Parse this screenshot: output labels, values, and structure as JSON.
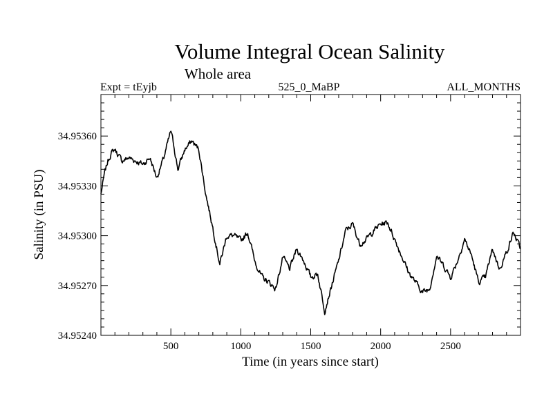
{
  "chart_data": {
    "type": "line",
    "title": "Volume Integral Ocean Salinity",
    "subtitle": "Whole area",
    "annotations": {
      "left": "Expt = tEyjb",
      "center": "525_0_MaBP",
      "right": "ALL_MONTHS"
    },
    "xlabel": "Time (in years since start)",
    "ylabel": "Salinity (in PSU)",
    "xlim": [
      0,
      3000
    ],
    "ylim": [
      34.9524,
      34.95385
    ],
    "xticks": [
      500,
      1000,
      1500,
      2000,
      2500
    ],
    "xtick_labels": [
      "500",
      "1000",
      "1500",
      "2000",
      "2500"
    ],
    "yticks": [
      34.9524,
      34.9527,
      34.953,
      34.9533,
      34.9536
    ],
    "ytick_labels": [
      "34.95240",
      "34.95270",
      "34.95300",
      "34.95330",
      "34.95360"
    ],
    "grid": false,
    "series": [
      {
        "name": "Salinity",
        "color": "#000000",
        "x": [
          0,
          25,
          50,
          75,
          100,
          150,
          200,
          250,
          300,
          350,
          400,
          450,
          500,
          520,
          550,
          600,
          650,
          700,
          750,
          800,
          850,
          900,
          950,
          1000,
          1050,
          1100,
          1150,
          1200,
          1250,
          1300,
          1350,
          1400,
          1450,
          1500,
          1550,
          1600,
          1650,
          1700,
          1750,
          1800,
          1850,
          1900,
          1950,
          2000,
          2050,
          2100,
          2150,
          2200,
          2250,
          2300,
          2350,
          2400,
          2450,
          2500,
          2550,
          2600,
          2650,
          2700,
          2750,
          2800,
          2850,
          2900,
          2950,
          3000
        ],
        "y": [
          34.95325,
          34.95337,
          34.95345,
          34.9535,
          34.95352,
          34.95345,
          34.95347,
          34.95345,
          34.95343,
          34.95347,
          34.95335,
          34.95347,
          34.95363,
          34.95355,
          34.9534,
          34.95352,
          34.95357,
          34.95352,
          34.95325,
          34.95305,
          34.95283,
          34.953,
          34.953,
          34.95297,
          34.95302,
          34.95285,
          34.95275,
          34.95272,
          34.95268,
          34.95287,
          34.9528,
          34.95292,
          34.95285,
          34.95275,
          34.95277,
          34.95255,
          34.9527,
          34.95285,
          34.95303,
          34.95307,
          34.95295,
          34.95298,
          34.95303,
          34.95307,
          34.95308,
          34.95298,
          34.95288,
          34.95278,
          34.95272,
          34.95266,
          34.95268,
          34.95288,
          34.95282,
          34.95275,
          34.95285,
          34.95298,
          34.95288,
          34.95272,
          34.95275,
          34.95292,
          34.9528,
          34.9529,
          34.95302,
          34.95292
        ]
      }
    ]
  }
}
